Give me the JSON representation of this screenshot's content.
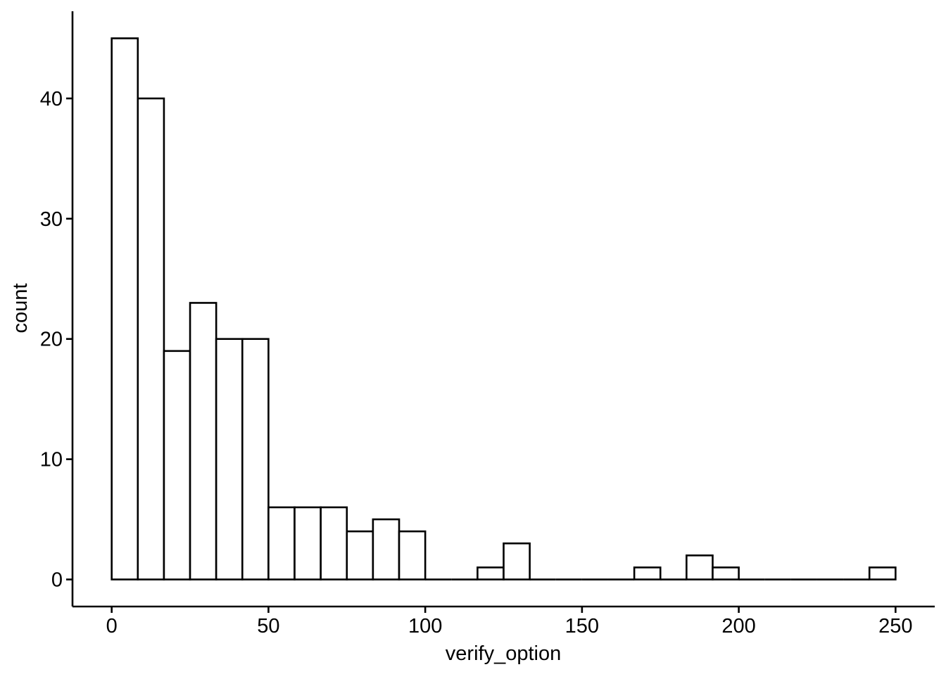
{
  "chart_data": {
    "type": "bar",
    "subtype": "histogram",
    "title": "",
    "xlabel": "verify_option",
    "ylabel": "count",
    "bin_width": 8.33,
    "bins": [
      {
        "x0": 0.0,
        "x1": 8.33,
        "count": 45
      },
      {
        "x0": 8.33,
        "x1": 16.67,
        "count": 40
      },
      {
        "x0": 16.67,
        "x1": 25.0,
        "count": 19
      },
      {
        "x0": 25.0,
        "x1": 33.33,
        "count": 23
      },
      {
        "x0": 33.33,
        "x1": 41.67,
        "count": 20
      },
      {
        "x0": 41.67,
        "x1": 50.0,
        "count": 20
      },
      {
        "x0": 50.0,
        "x1": 58.33,
        "count": 6
      },
      {
        "x0": 58.33,
        "x1": 66.67,
        "count": 6
      },
      {
        "x0": 66.67,
        "x1": 75.0,
        "count": 6
      },
      {
        "x0": 75.0,
        "x1": 83.33,
        "count": 4
      },
      {
        "x0": 83.33,
        "x1": 91.67,
        "count": 5
      },
      {
        "x0": 91.67,
        "x1": 100.0,
        "count": 4
      },
      {
        "x0": 100.0,
        "x1": 108.33,
        "count": 0
      },
      {
        "x0": 108.33,
        "x1": 116.67,
        "count": 0
      },
      {
        "x0": 116.67,
        "x1": 125.0,
        "count": 1
      },
      {
        "x0": 125.0,
        "x1": 133.33,
        "count": 3
      },
      {
        "x0": 133.33,
        "x1": 141.67,
        "count": 0
      },
      {
        "x0": 141.67,
        "x1": 150.0,
        "count": 0
      },
      {
        "x0": 150.0,
        "x1": 158.33,
        "count": 0
      },
      {
        "x0": 158.33,
        "x1": 166.67,
        "count": 0
      },
      {
        "x0": 166.67,
        "x1": 175.0,
        "count": 1
      },
      {
        "x0": 175.0,
        "x1": 183.33,
        "count": 0
      },
      {
        "x0": 183.33,
        "x1": 191.67,
        "count": 2
      },
      {
        "x0": 191.67,
        "x1": 200.0,
        "count": 1
      },
      {
        "x0": 200.0,
        "x1": 208.33,
        "count": 0
      },
      {
        "x0": 208.33,
        "x1": 216.67,
        "count": 0
      },
      {
        "x0": 216.67,
        "x1": 225.0,
        "count": 0
      },
      {
        "x0": 225.0,
        "x1": 233.33,
        "count": 0
      },
      {
        "x0": 233.33,
        "x1": 241.67,
        "count": 0
      },
      {
        "x0": 241.67,
        "x1": 250.0,
        "count": 1
      }
    ],
    "xticks": [
      0,
      50,
      100,
      150,
      200,
      250
    ],
    "yticks": [
      0,
      10,
      20,
      30,
      40
    ],
    "xlim": [
      -12.5,
      262.5
    ],
    "ylim": [
      -2.25,
      47.25
    ],
    "grid": false,
    "legend": "none",
    "bar_fill": "#ffffff",
    "bar_stroke": "#000000",
    "axis_color": "#000000"
  }
}
